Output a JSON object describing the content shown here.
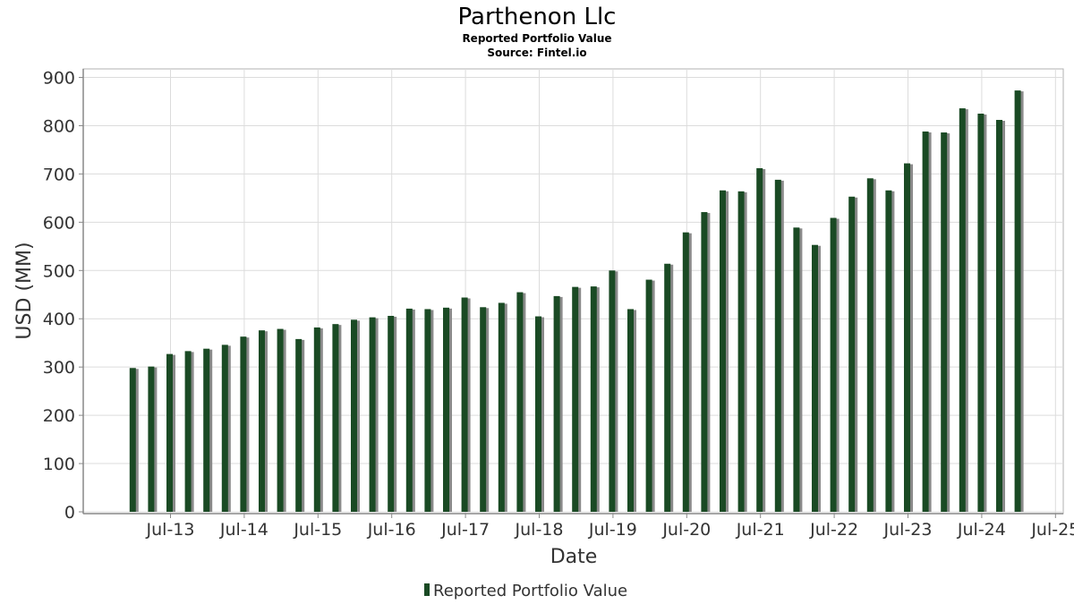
{
  "chart_data": {
    "type": "bar",
    "title": "Parthenon Llc",
    "subtitle": "Reported Portfolio Value",
    "source": "Source: Fintel.io",
    "xlabel": "Date",
    "ylabel": "USD (MM)",
    "ylim": [
      0,
      920
    ],
    "yticks": [
      0,
      100,
      200,
      300,
      400,
      500,
      600,
      700,
      800,
      900
    ],
    "grid": true,
    "legend_position": "bottom-center",
    "x_tick_labels": [
      "Jul-13",
      "Jul-14",
      "Jul-15",
      "Jul-16",
      "Jul-17",
      "Jul-18",
      "Jul-19",
      "Jul-20",
      "Jul-21",
      "Jul-22",
      "Jul-23",
      "Jul-24",
      "Jul-25"
    ],
    "series": [
      {
        "name": "Reported Portfolio Value",
        "color": "#1a4a24",
        "values": [
          298,
          301,
          327,
          333,
          338,
          346,
          363,
          376,
          379,
          358,
          382,
          389,
          398,
          403,
          406,
          421,
          420,
          423,
          444,
          424,
          433,
          455,
          405,
          447,
          466,
          467,
          500,
          420,
          481,
          514,
          579,
          621,
          666,
          664,
          712,
          688,
          589,
          553,
          609,
          653,
          691,
          666,
          722,
          788,
          786,
          836,
          825,
          812,
          873
        ]
      }
    ]
  }
}
